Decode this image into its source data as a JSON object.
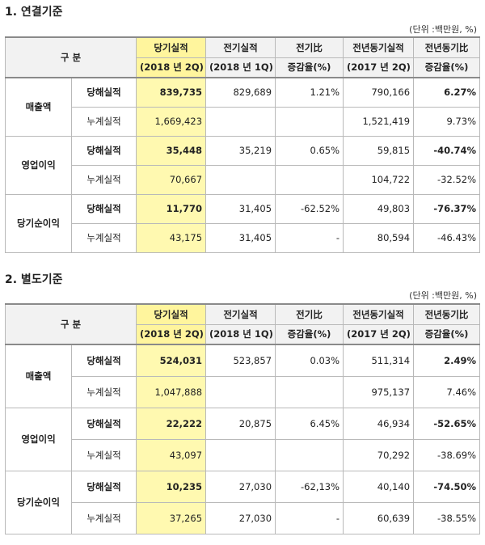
{
  "sections": [
    {
      "title": "1. 연결기준",
      "unit": "(단위 :백만원, %)",
      "header": {
        "gubun": "구        분",
        "c1a": "당기실적",
        "c1b": "(2018 년 2Q)",
        "c2a": "전기실적",
        "c2b": "(2018 년 1Q)",
        "c3a": "전기比",
        "c3b": "증감율(%)",
        "c4a": "전년동기실적",
        "c4b": "(2017 년 2Q)",
        "c5a": "전년동기比",
        "c5b": "증감율(%)"
      },
      "groups": [
        {
          "name": "매출액",
          "rows": [
            {
              "label": "당해실적",
              "cur": "839,735",
              "prev": "829,689",
              "prev_rate": "1.21%",
              "yoy": "790,166",
              "yoy_rate": "6.27%"
            },
            {
              "label": "누계실적",
              "cur": "1,669,423",
              "prev": "",
              "prev_rate": "",
              "yoy": "1,521,419",
              "yoy_rate": "9.73%"
            }
          ]
        },
        {
          "name": "영업이익",
          "rows": [
            {
              "label": "당해실적",
              "cur": "35,448",
              "prev": "35,219",
              "prev_rate": "0.65%",
              "yoy": "59,815",
              "yoy_rate": "-40.74%"
            },
            {
              "label": "누계실적",
              "cur": "70,667",
              "prev": "",
              "prev_rate": "",
              "yoy": "104,722",
              "yoy_rate": "-32.52%"
            }
          ]
        },
        {
          "name": "당기순이익",
          "rows": [
            {
              "label": "당해실적",
              "cur": "11,770",
              "prev": "31,405",
              "prev_rate": "-62.52%",
              "yoy": "49,803",
              "yoy_rate": "-76.37%"
            },
            {
              "label": "누계실적",
              "cur": "43,175",
              "prev": "31,405",
              "prev_rate": "-",
              "yoy": "80,594",
              "yoy_rate": "-46.43%"
            }
          ]
        }
      ]
    },
    {
      "title": "2. 별도기준",
      "unit": "(단위 :백만원, %)",
      "header": {
        "gubun": "구        분",
        "c1a": "당기실적",
        "c1b": "(2018 년 2Q)",
        "c2a": "전기실적",
        "c2b": "(2018 년 1Q)",
        "c3a": "전기比",
        "c3b": "증감율(%)",
        "c4a": "전년동기실적",
        "c4b": "(2017 년 2Q)",
        "c5a": "전년동기比",
        "c5b": "증감율(%)"
      },
      "groups": [
        {
          "name": "매출액",
          "rows": [
            {
              "label": "당해실적",
              "cur": "524,031",
              "prev": "523,857",
              "prev_rate": "0.03%",
              "yoy": "511,314",
              "yoy_rate": "2.49%"
            },
            {
              "label": "누계실적",
              "cur": "1,047,888",
              "prev": "",
              "prev_rate": "",
              "yoy": "975,137",
              "yoy_rate": "7.46%"
            }
          ]
        },
        {
          "name": "영업이익",
          "rows": [
            {
              "label": "당해실적",
              "cur": "22,222",
              "prev": "20,875",
              "prev_rate": "6.45%",
              "yoy": "46,934",
              "yoy_rate": "-52.65%"
            },
            {
              "label": "누계실적",
              "cur": "43,097",
              "prev": "",
              "prev_rate": "",
              "yoy": "70,292",
              "yoy_rate": "-38.69%"
            }
          ]
        },
        {
          "name": "당기순이익",
          "rows": [
            {
              "label": "당해실적",
              "cur": "10,235",
              "prev": "27,030",
              "prev_rate": "-62,13%",
              "yoy": "40,140",
              "yoy_rate": "-74.50%"
            },
            {
              "label": "누계실적",
              "cur": "37,265",
              "prev": "27,030",
              "prev_rate": "-",
              "yoy": "60,639",
              "yoy_rate": "-38.55%"
            }
          ]
        }
      ]
    }
  ]
}
